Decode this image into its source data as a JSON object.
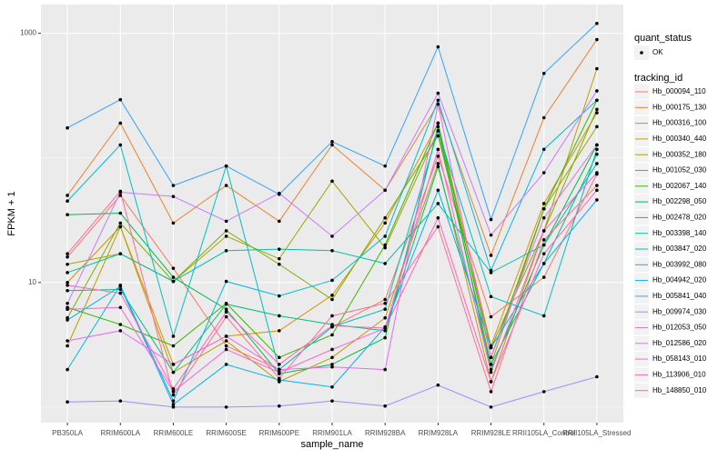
{
  "chart_data": {
    "type": "line",
    "x_label": "sample_name",
    "y_label": "FPKM + 1",
    "log_y": true,
    "grid": true,
    "point_color": "#000000",
    "shape_legend_title": "quant_status",
    "shape_levels": [
      "OK"
    ],
    "color_legend_title": "tracking_id",
    "categories": [
      "PB350LA",
      "RRIM600LA",
      "RRIM600LE",
      "RRIM600SE",
      "RRIM600PE",
      "RRIM901LA",
      "RRIM928BA",
      "RRIM928LA",
      "RRIM928LE",
      "RRII105LA_Control",
      "RRII105LA_Stressed"
    ],
    "ylim": [
      0.75,
      1700
    ],
    "yticks": [
      10,
      1000
    ],
    "y_minor_ticks": [
      1,
      100
    ],
    "series": [
      {
        "name": "Hb_000094_110",
        "color": "#F8766D",
        "values": [
          16,
          50,
          13,
          3.1,
          2,
          4.4,
          7.3,
          103,
          5.3,
          11,
          74
        ]
      },
      {
        "name": "Hb_000175_130",
        "color": "#EA8331",
        "values": [
          50,
          190,
          30,
          60,
          31,
          127,
          55,
          270,
          16.5,
          210,
          890
        ]
      },
      {
        "name": "Hb_000316_100",
        "color": "#D89000",
        "values": [
          10,
          28,
          2.2,
          3.7,
          4.1,
          7.9,
          30,
          190,
          3.1,
          43,
          230
        ]
      },
      {
        "name": "Hb_000340_440",
        "color": "#C09B00",
        "values": [
          3.1,
          28,
          1.9,
          3.4,
          1.6,
          2.5,
          5.2,
          90,
          1.6,
          26,
          520
        ]
      },
      {
        "name": "Hb_000352_180",
        "color": "#A3A500",
        "values": [
          14,
          17,
          10.2,
          23.5,
          15.5,
          65,
          19,
          165,
          2.2,
          39,
          178
        ]
      },
      {
        "name": "Hb_001052_030",
        "color": "#7CAE00",
        "values": [
          5.2,
          30,
          10.2,
          26,
          14,
          7.3,
          33,
          150,
          3,
          26,
          245
        ]
      },
      {
        "name": "Hb_002067_140",
        "color": "#39B600",
        "values": [
          6.3,
          4.6,
          3.1,
          6.8,
          2.5,
          3.8,
          20,
          190,
          2.5,
          39,
          290
        ]
      },
      {
        "name": "Hb_002298_050",
        "color": "#00BB4E",
        "values": [
          35,
          36,
          11,
          6.1,
          1.85,
          2.2,
          3.6,
          178,
          2,
          20,
          127
        ]
      },
      {
        "name": "Hb_002478_020",
        "color": "#00BF7D",
        "values": [
          8.6,
          8.8,
          1.9,
          6.7,
          5.4,
          4.6,
          4.1,
          85,
          2.2,
          14.2,
          107
        ]
      },
      {
        "name": "Hb_003398_140",
        "color": "#00C1A3",
        "values": [
          12,
          17,
          10.2,
          18,
          18.5,
          18,
          14.2,
          43,
          12,
          20,
          90
        ]
      },
      {
        "name": "Hb_003847_020",
        "color": "#00BFC4",
        "values": [
          45,
          127,
          3.7,
          86,
          2,
          4.4,
          6.1,
          165,
          7.7,
          5.4,
          117
        ]
      },
      {
        "name": "Hb_003992_080",
        "color": "#00BAE0",
        "values": [
          2,
          9.5,
          1.12,
          10.2,
          7.8,
          10.4,
          23.5,
          290,
          12.5,
          117,
          290
        ]
      },
      {
        "name": "Hb_004942_020",
        "color": "#00B0F6",
        "values": [
          5,
          9.3,
          1.05,
          2.2,
          1.65,
          1.45,
          4.4,
          55,
          3,
          14.2,
          46
        ]
      },
      {
        "name": "Hb_005841_040",
        "color": "#35A2FF",
        "values": [
          174,
          293,
          60,
          86,
          51,
          135,
          86,
          778,
          32,
          476,
          1200
        ]
      },
      {
        "name": "Hb_009974_030",
        "color": "#9590FF",
        "values": [
          1.1,
          1.12,
          1,
          1,
          1.02,
          1.12,
          1.02,
          1.5,
          1,
          1.33,
          1.75
        ]
      },
      {
        "name": "Hb_012053_050",
        "color": "#C77CFF",
        "values": [
          6.8,
          53,
          49,
          31,
          52,
          23.5,
          55,
          330,
          24,
          76,
          345
        ]
      },
      {
        "name": "Hb_012586_020",
        "color": "#E76BF3",
        "values": [
          3.4,
          4.1,
          2.2,
          3.7,
          2,
          2.1,
          2,
          270,
          2.5,
          33,
          127
        ]
      },
      {
        "name": "Hb_058143_010",
        "color": "#FA62DB",
        "values": [
          6.1,
          6.3,
          1.33,
          2.9,
          1.9,
          2.9,
          4.3,
          117,
          1.9,
          26,
          76
        ]
      },
      {
        "name": "Hb_113906_010",
        "color": "#FF62BC",
        "values": [
          9.5,
          8.2,
          1.4,
          5.8,
          2.2,
          4.5,
          4.3,
          33,
          1.6,
          17,
          55
        ]
      },
      {
        "name": "Hb_148850_010",
        "color": "#FF6C91",
        "values": [
          17,
          54,
          1.25,
          5.3,
          1.7,
          5.4,
          6.8,
          28,
          1.33,
          22,
          60
        ]
      }
    ]
  }
}
